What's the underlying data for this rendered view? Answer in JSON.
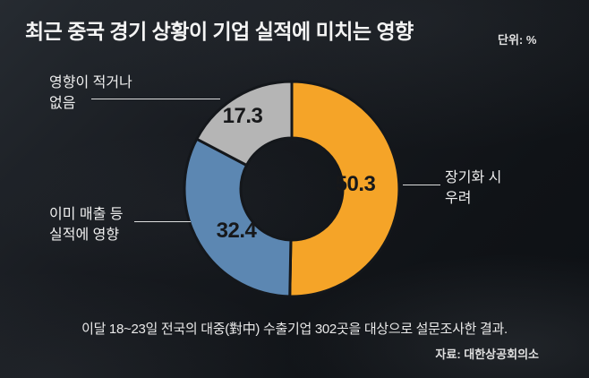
{
  "header": {
    "title": "최근 중국 경기 상황이 기업 실적에 미치는 영향",
    "unit": "단위: %"
  },
  "chart_data": {
    "type": "pie",
    "donut": true,
    "title": "최근 중국 경기 상황이 기업 실적에 미치는 영향",
    "unit": "%",
    "start_angle_deg": 0,
    "direction": "clockwise",
    "categories": [
      "장기화 시 우려",
      "이미 매출 등 실적에 영향",
      "영향이 적거나 없음"
    ],
    "values": [
      50.3,
      32.4,
      17.3
    ],
    "colors": [
      "#F5A428",
      "#5C87B2",
      "#B5B5B5"
    ],
    "legend": "none",
    "labels_position": "values inside slices, category labels as outside callouts"
  },
  "labels": {
    "orange": "장기화 시\n우려",
    "blue": "이미 매출 등\n실적에 영향",
    "gray": "영향이 적거나\n없음"
  },
  "footer": {
    "note": "이달 18~23일 전국의 대중(對中) 수출기업 302곳을 대상으로 설문조사한 결과.",
    "source": "자료: 대한상공회의소"
  }
}
